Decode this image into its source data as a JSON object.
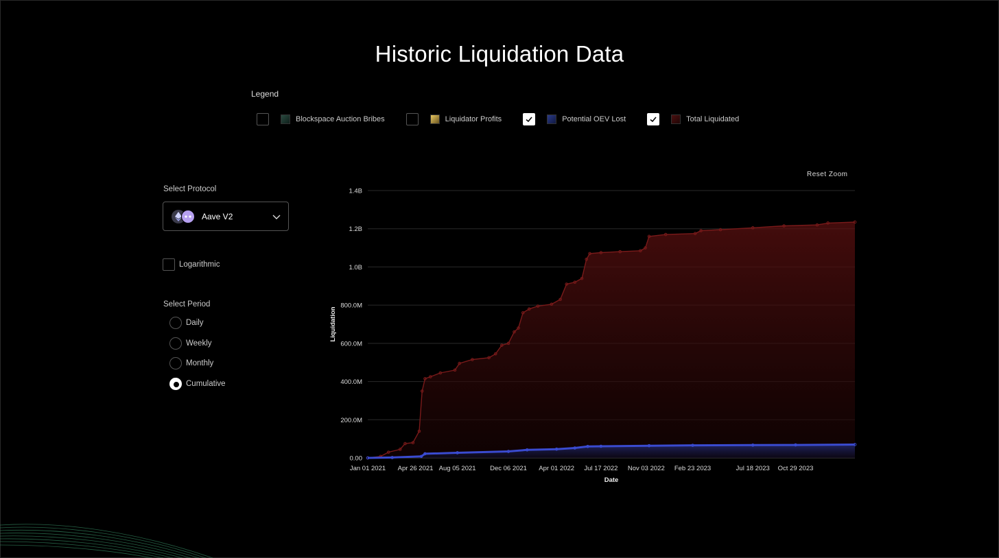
{
  "page": {
    "title": "Historic Liquidation Data"
  },
  "legend": {
    "title": "Legend",
    "items": [
      {
        "label": "Blockspace Auction Bribes",
        "checked": false,
        "color": "#1f3a32"
      },
      {
        "label": "Liquidator Profits",
        "checked": false,
        "color": "#c9a84a"
      },
      {
        "label": "Potential OEV Lost",
        "checked": true,
        "color": "#1e2a66"
      },
      {
        "label": "Total Liquidated",
        "checked": true,
        "color": "#3a0d0d"
      }
    ]
  },
  "sidebar": {
    "protocol_label": "Select Protocol",
    "protocol_value": "Aave V2",
    "log_label": "Logarithmic",
    "log_checked": false,
    "period_label": "Select Period",
    "periods": [
      {
        "label": "Daily",
        "selected": false
      },
      {
        "label": "Weekly",
        "selected": false
      },
      {
        "label": "Monthly",
        "selected": false
      },
      {
        "label": "Cumulative",
        "selected": true
      }
    ]
  },
  "toolbar": {
    "reset_label": "Reset Zoom"
  },
  "chart_data": {
    "type": "area",
    "title": "",
    "xlabel": "Date",
    "ylabel": "Liquidation",
    "ylim": [
      0,
      1400000000
    ],
    "xlim": [
      "2021-01-01",
      "2024-03-20"
    ],
    "y_ticks": [
      "0.00",
      "200.0M",
      "400.0M",
      "600.0M",
      "800.0M",
      "1.0B",
      "1.2B",
      "1.4B"
    ],
    "y_tick_values": [
      0,
      200000000,
      400000000,
      600000000,
      800000000,
      1000000000,
      1200000000,
      1400000000
    ],
    "x_ticks": [
      "Jan 01 2021",
      "Apr 26 2021",
      "Aug 05 2021",
      "Dec 06 2021",
      "Apr 01 2022",
      "Jul 17 2022",
      "Nov 03 2022",
      "Feb 23 2023",
      "Jul 18 2023",
      "Oct 29 2023"
    ],
    "x_tick_dates": [
      "2021-01-01",
      "2021-04-26",
      "2021-08-05",
      "2021-12-06",
      "2022-04-01",
      "2022-07-17",
      "2022-11-03",
      "2023-02-23",
      "2023-07-18",
      "2023-10-29"
    ],
    "grid": true,
    "series": [
      {
        "name": "Total Liquidated",
        "color": "#7a1a1a",
        "points": [
          [
            "2021-01-01",
            0
          ],
          [
            "2021-02-01",
            8000000
          ],
          [
            "2021-02-20",
            30000000
          ],
          [
            "2021-03-20",
            45000000
          ],
          [
            "2021-04-01",
            75000000
          ],
          [
            "2021-04-20",
            80000000
          ],
          [
            "2021-05-05",
            140000000
          ],
          [
            "2021-05-12",
            350000000
          ],
          [
            "2021-05-19",
            415000000
          ],
          [
            "2021-06-01",
            425000000
          ],
          [
            "2021-06-25",
            445000000
          ],
          [
            "2021-07-30",
            460000000
          ],
          [
            "2021-08-10",
            495000000
          ],
          [
            "2021-09-10",
            515000000
          ],
          [
            "2021-10-20",
            525000000
          ],
          [
            "2021-11-05",
            545000000
          ],
          [
            "2021-11-20",
            590000000
          ],
          [
            "2021-12-06",
            600000000
          ],
          [
            "2021-12-20",
            660000000
          ],
          [
            "2021-12-30",
            680000000
          ],
          [
            "2022-01-10",
            760000000
          ],
          [
            "2022-01-25",
            780000000
          ],
          [
            "2022-02-15",
            795000000
          ],
          [
            "2022-03-20",
            805000000
          ],
          [
            "2022-04-10",
            830000000
          ],
          [
            "2022-04-25",
            910000000
          ],
          [
            "2022-05-15",
            920000000
          ],
          [
            "2022-06-01",
            940000000
          ],
          [
            "2022-06-12",
            1040000000
          ],
          [
            "2022-06-20",
            1070000000
          ],
          [
            "2022-07-17",
            1075000000
          ],
          [
            "2022-09-01",
            1080000000
          ],
          [
            "2022-10-20",
            1085000000
          ],
          [
            "2022-11-01",
            1100000000
          ],
          [
            "2022-11-10",
            1160000000
          ],
          [
            "2022-12-20",
            1170000000
          ],
          [
            "2023-03-01",
            1175000000
          ],
          [
            "2023-03-15",
            1190000000
          ],
          [
            "2023-05-01",
            1195000000
          ],
          [
            "2023-07-18",
            1205000000
          ],
          [
            "2023-10-01",
            1215000000
          ],
          [
            "2023-12-20",
            1220000000
          ],
          [
            "2024-01-15",
            1230000000
          ],
          [
            "2024-03-20",
            1235000000
          ]
        ]
      },
      {
        "name": "Potential OEV Lost",
        "color": "#3a4bd0",
        "points": [
          [
            "2021-01-01",
            0
          ],
          [
            "2021-03-01",
            2000000
          ],
          [
            "2021-05-10",
            8000000
          ],
          [
            "2021-05-19",
            22000000
          ],
          [
            "2021-08-05",
            27000000
          ],
          [
            "2021-12-06",
            34000000
          ],
          [
            "2022-01-20",
            42000000
          ],
          [
            "2022-04-01",
            46000000
          ],
          [
            "2022-05-15",
            52000000
          ],
          [
            "2022-06-15",
            60000000
          ],
          [
            "2022-07-17",
            61000000
          ],
          [
            "2022-11-10",
            64000000
          ],
          [
            "2023-02-23",
            66000000
          ],
          [
            "2023-07-18",
            67000000
          ],
          [
            "2023-10-29",
            68000000
          ],
          [
            "2024-03-20",
            70000000
          ]
        ]
      }
    ]
  }
}
